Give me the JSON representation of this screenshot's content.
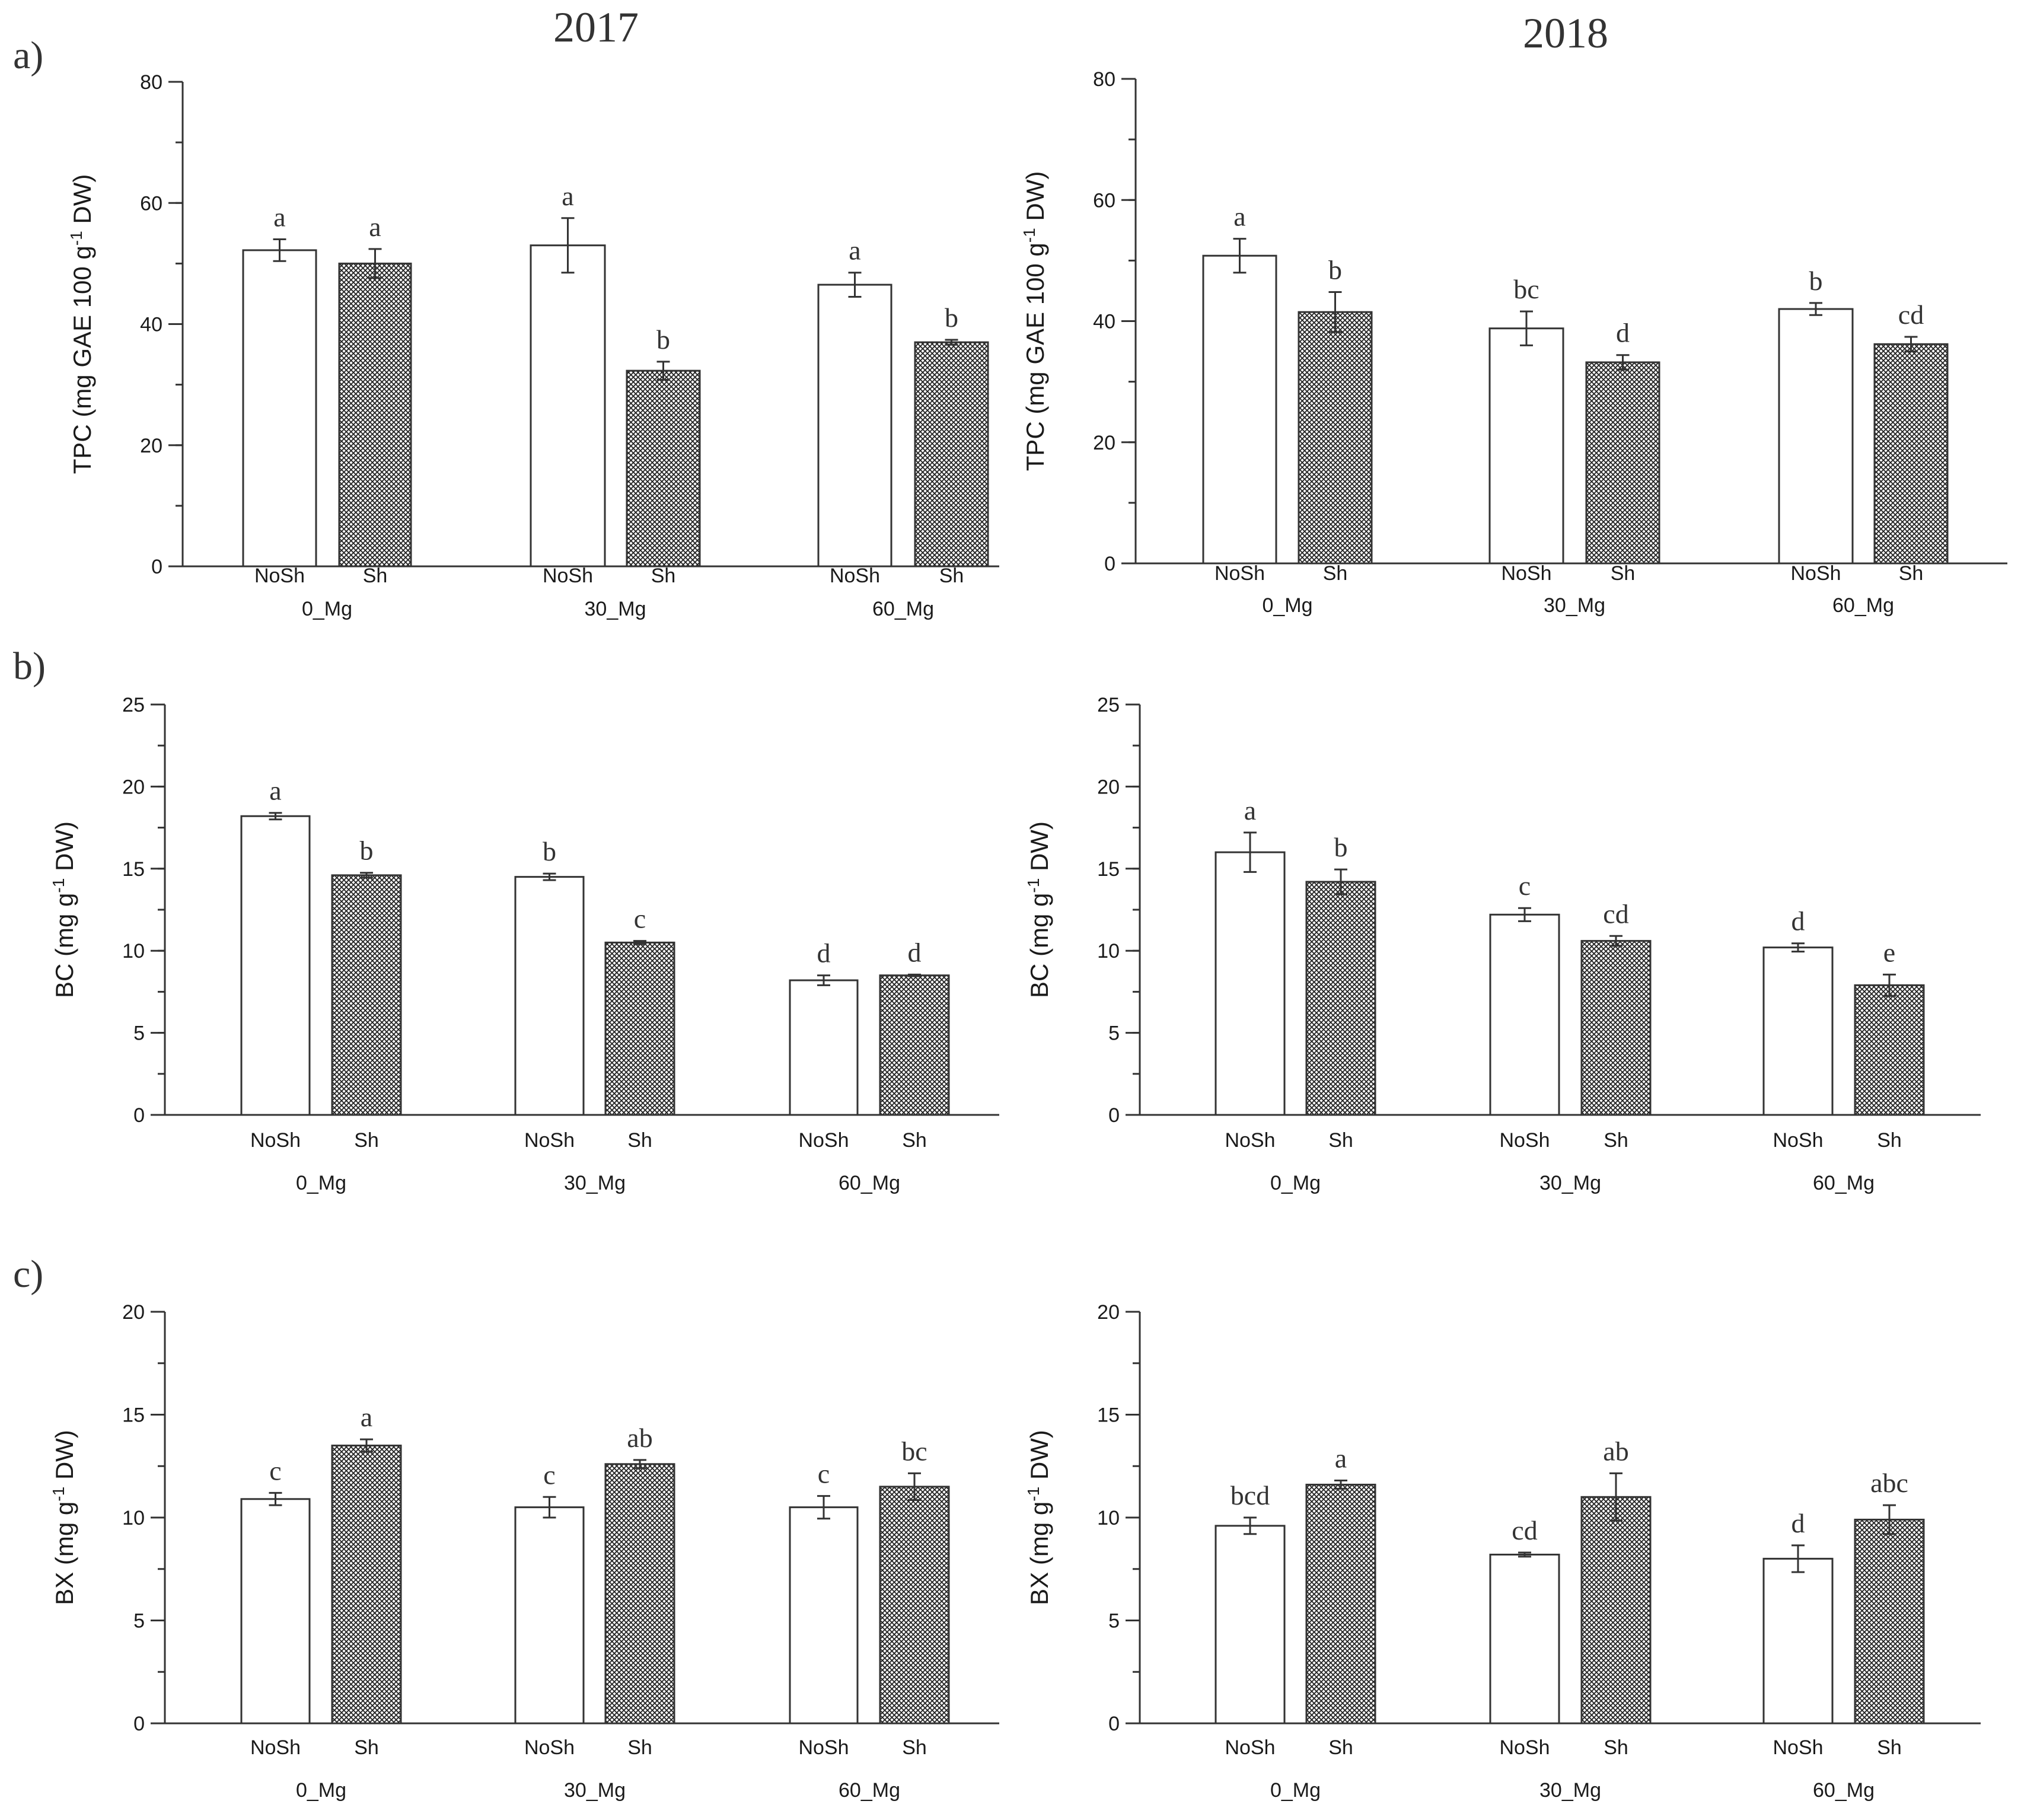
{
  "figure": {
    "row_labels": [
      "a)",
      "b)",
      "c)"
    ],
    "year_titles": [
      "2017",
      "2018"
    ]
  },
  "chart_data": [
    {
      "id": "a-2017",
      "type": "bar",
      "row": 0,
      "col": 0,
      "title": "2017",
      "panel_label": "a)",
      "ylabel": "TPC (mg GAE 100 g-1 DW)",
      "ylabel_main": "TPC (mg GAE 100 g",
      "ylabel_sup": "-1",
      "ylabel_tail": " DW)",
      "ylim": [
        0,
        80
      ],
      "yticks": [
        0,
        20,
        40,
        60,
        80
      ],
      "yminor": 10,
      "groups": [
        "0_Mg",
        "30_Mg",
        "60_Mg"
      ],
      "subcategories": [
        "NoSh",
        "Sh"
      ],
      "series": [
        {
          "name": "NoSh",
          "values": [
            52.2,
            53.0,
            46.5
          ],
          "errors": [
            1.8,
            4.5,
            2.0
          ],
          "letters": [
            "a",
            "a",
            "a"
          ]
        },
        {
          "name": "Sh",
          "values": [
            50.0,
            32.3,
            37.0
          ],
          "errors": [
            2.4,
            1.5,
            0.4
          ],
          "letters": [
            "a",
            "b",
            "b"
          ]
        }
      ]
    },
    {
      "id": "a-2018",
      "type": "bar",
      "row": 0,
      "col": 1,
      "title": "2018",
      "panel_label": "a)",
      "ylabel": "TPC (mg GAE 100 g-1 DW)",
      "ylabel_main": "TPC (mg GAE 100 g",
      "ylabel_sup": "-1",
      "ylabel_tail": " DW)",
      "ylim": [
        0,
        80
      ],
      "yticks": [
        0,
        20,
        40,
        60,
        80
      ],
      "yminor": 10,
      "groups": [
        "0_Mg",
        "30_Mg",
        "60_Mg"
      ],
      "subcategories": [
        "NoSh",
        "Sh"
      ],
      "series": [
        {
          "name": "NoSh",
          "values": [
            50.8,
            38.8,
            42.0
          ],
          "errors": [
            2.8,
            2.8,
            1.0
          ],
          "letters": [
            "a",
            "bc",
            "b"
          ]
        },
        {
          "name": "Sh",
          "values": [
            41.5,
            33.2,
            36.2
          ],
          "errors": [
            3.3,
            1.2,
            1.2
          ],
          "letters": [
            "b",
            "d",
            "cd"
          ]
        }
      ]
    },
    {
      "id": "b-2017",
      "type": "bar",
      "row": 1,
      "col": 0,
      "panel_label": "b)",
      "ylabel": "BC (mg g-1 DW)",
      "ylabel_main": "BC (mg g",
      "ylabel_sup": "-1",
      "ylabel_tail": " DW)",
      "ylim": [
        0,
        25
      ],
      "yticks": [
        0,
        5,
        10,
        15,
        20,
        25
      ],
      "yminor": 2.5,
      "groups": [
        "0_Mg",
        "30_Mg",
        "60_Mg"
      ],
      "subcategories": [
        "NoSh",
        "Sh"
      ],
      "series": [
        {
          "name": "NoSh",
          "values": [
            18.2,
            14.5,
            8.2
          ],
          "errors": [
            0.2,
            0.2,
            0.3
          ],
          "letters": [
            "a",
            "b",
            "d"
          ]
        },
        {
          "name": "Sh",
          "values": [
            14.6,
            10.5,
            8.5
          ],
          "errors": [
            0.15,
            0.1,
            0.05
          ],
          "letters": [
            "b",
            "c",
            "d"
          ]
        }
      ]
    },
    {
      "id": "b-2018",
      "type": "bar",
      "row": 1,
      "col": 1,
      "panel_label": "b)",
      "ylabel": "BC (mg g-1 DW)",
      "ylabel_main": "BC (mg g",
      "ylabel_sup": "-1",
      "ylabel_tail": " DW)",
      "ylim": [
        0,
        25
      ],
      "yticks": [
        0,
        5,
        10,
        15,
        20,
        25
      ],
      "yminor": 2.5,
      "groups": [
        "0_Mg",
        "30_Mg",
        "60_Mg"
      ],
      "subcategories": [
        "NoSh",
        "Sh"
      ],
      "series": [
        {
          "name": "NoSh",
          "values": [
            16.0,
            12.2,
            10.2
          ],
          "errors": [
            1.2,
            0.4,
            0.25
          ],
          "letters": [
            "a",
            "c",
            "d"
          ]
        },
        {
          "name": "Sh",
          "values": [
            14.2,
            10.6,
            7.9
          ],
          "errors": [
            0.75,
            0.3,
            0.65
          ],
          "letters": [
            "b",
            "cd",
            "e"
          ]
        }
      ]
    },
    {
      "id": "c-2017",
      "type": "bar",
      "row": 2,
      "col": 0,
      "panel_label": "c)",
      "ylabel": "BX (mg g-1 DW)",
      "ylabel_main": "BX (mg g",
      "ylabel_sup": "-1",
      "ylabel_tail": " DW)",
      "ylim": [
        0,
        20
      ],
      "yticks": [
        0,
        5,
        10,
        15,
        20
      ],
      "yminor": 2.5,
      "groups": [
        "0_Mg",
        "30_Mg",
        "60_Mg"
      ],
      "subcategories": [
        "NoSh",
        "Sh"
      ],
      "series": [
        {
          "name": "NoSh",
          "values": [
            10.9,
            10.5,
            10.5
          ],
          "errors": [
            0.3,
            0.5,
            0.55
          ],
          "letters": [
            "c",
            "c",
            "c"
          ]
        },
        {
          "name": "Sh",
          "values": [
            13.5,
            12.6,
            11.5
          ],
          "errors": [
            0.3,
            0.2,
            0.65
          ],
          "letters": [
            "a",
            "ab",
            "bc"
          ]
        }
      ]
    },
    {
      "id": "c-2018",
      "type": "bar",
      "row": 2,
      "col": 1,
      "panel_label": "c)",
      "ylabel": "BX (mg g-1 DW)",
      "ylabel_main": "BX (mg g",
      "ylabel_sup": "-1",
      "ylabel_tail": " DW)",
      "ylim": [
        0,
        20
      ],
      "yticks": [
        0,
        5,
        10,
        15,
        20
      ],
      "yminor": 2.5,
      "groups": [
        "0_Mg",
        "30_Mg",
        "60_Mg"
      ],
      "subcategories": [
        "NoSh",
        "Sh"
      ],
      "series": [
        {
          "name": "NoSh",
          "values": [
            9.6,
            8.2,
            8.0
          ],
          "errors": [
            0.4,
            0.1,
            0.65
          ],
          "letters": [
            "bcd",
            "cd",
            "d"
          ]
        },
        {
          "name": "Sh",
          "values": [
            11.6,
            11.0,
            9.9
          ],
          "errors": [
            0.2,
            1.15,
            0.7
          ],
          "letters": [
            "a",
            "ab",
            "abc"
          ]
        }
      ]
    }
  ]
}
